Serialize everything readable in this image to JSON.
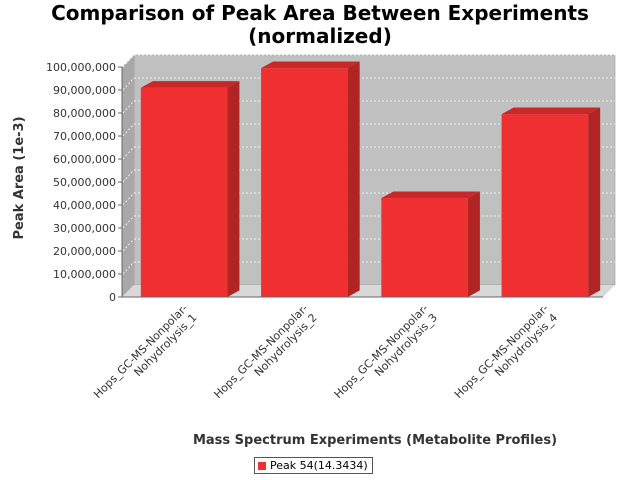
{
  "chart_data": {
    "type": "bar",
    "title_lines": [
      "Comparison of Peak Area Between Experiments",
      "(normalized)"
    ],
    "xlabel": "Mass Spectrum Experiments (Metabolite Profiles)",
    "ylabel": "Peak Area (1e-3)",
    "categories": [
      [
        "Hops_GC-MS-Nonpolar-",
        "Nohydrolysis_1"
      ],
      [
        "Hops_GC-MS-Nonpolar-",
        "Nohydrolysis_2"
      ],
      [
        "Hops_GC-MS-Nonpolar-",
        "Nohydrolysis_3"
      ],
      [
        "Hops_GC-MS-Nonpolar-",
        "Nohydrolysis_4"
      ]
    ],
    "series": [
      {
        "name": "Peak 54(14.3434)",
        "values": [
          91000000,
          99500000,
          43000000,
          79500000
        ]
      }
    ],
    "ylim": [
      0,
      100000000
    ],
    "yticks": [
      {
        "value": 0,
        "label": "0"
      },
      {
        "value": 10000000,
        "label": "10,000,000"
      },
      {
        "value": 20000000,
        "label": "20,000,000"
      },
      {
        "value": 30000000,
        "label": "30,000,000"
      },
      {
        "value": 40000000,
        "label": "40,000,000"
      },
      {
        "value": 50000000,
        "label": "50,000,000"
      },
      {
        "value": 60000000,
        "label": "60,000,000"
      },
      {
        "value": 70000000,
        "label": "70,000,000"
      },
      {
        "value": 80000000,
        "label": "80,000,000"
      },
      {
        "value": 90000000,
        "label": "90,000,000"
      },
      {
        "value": 100000000,
        "label": "100,000,000"
      }
    ],
    "grid": true,
    "style": "3d",
    "legend_position": "bottom",
    "colors": {
      "bar_front": "#f03030",
      "bar_top": "#c82828",
      "bar_side": "#b02424",
      "plot_background": "#c0c0c0",
      "floor": "#d8d8d8",
      "gridline": "#ffffff"
    }
  }
}
